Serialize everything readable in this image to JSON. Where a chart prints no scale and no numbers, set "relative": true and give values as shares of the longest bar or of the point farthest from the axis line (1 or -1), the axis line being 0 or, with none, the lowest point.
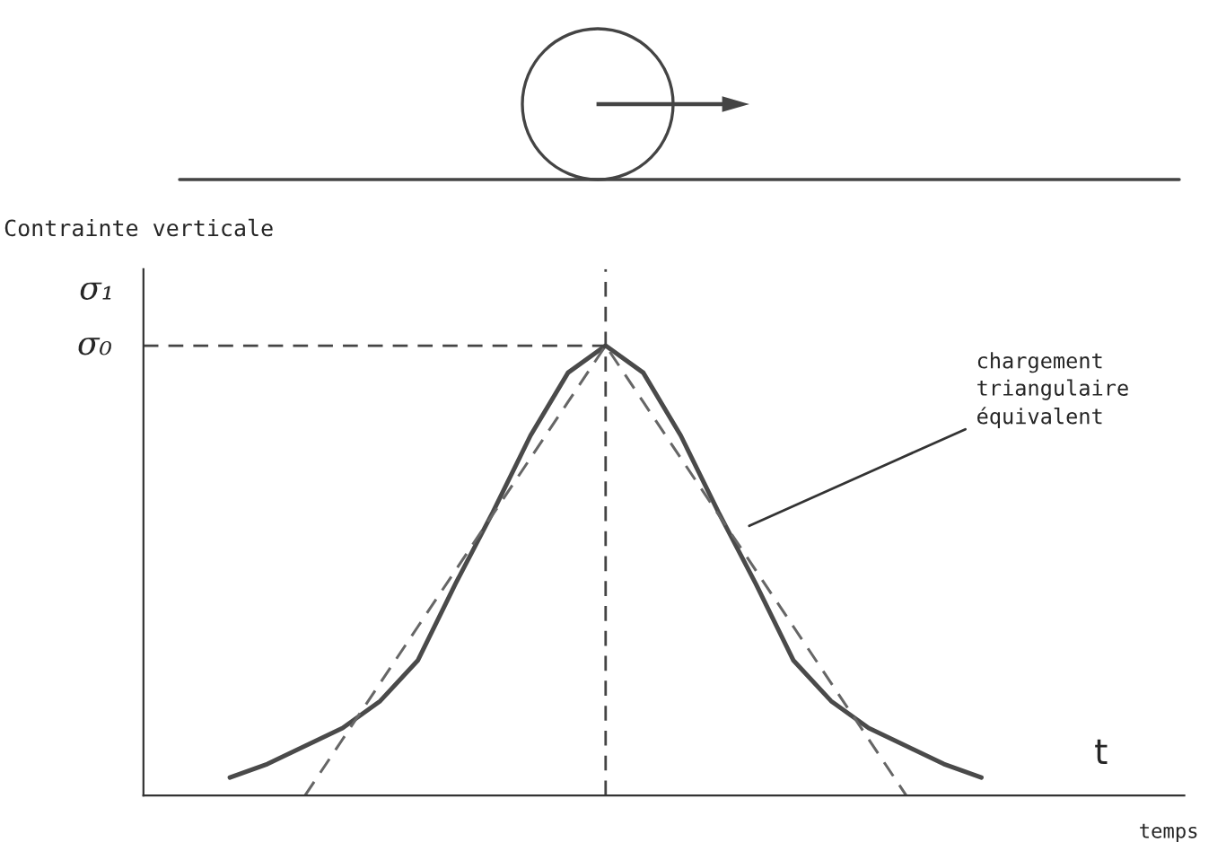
{
  "chart_data": {
    "type": "line",
    "relative": true,
    "title": "Contrainte verticale",
    "ylabel": "σ₁",
    "categories": [
      null,
      null,
      null,
      null,
      null,
      null,
      null,
      null,
      null,
      null,
      null,
      null,
      null,
      null,
      null,
      null,
      null,
      null,
      null,
      null,
      null
    ],
    "series": [
      {
        "color": "#4a4a4a",
        "line_style": "solid",
        "values": [
          0.04,
          0.07,
          0.11,
          0.15,
          0.21,
          0.3,
          0.47,
          0.63,
          0.8,
          0.94,
          1,
          0.94,
          0.8,
          0.63,
          0.47,
          0.3,
          0.21,
          0.15,
          0.11,
          0.07,
          0.04
        ]
      },
      {
        "color": "#666666",
        "line_style": "dashed",
        "values": [
          null,
          null,
          0,
          0.125,
          0.25,
          0.375,
          0.5,
          0.625,
          0.75,
          0.875,
          1,
          0.875,
          0.75,
          0.625,
          0.5,
          0.375,
          0.25,
          0.125,
          0,
          null,
          null
        ]
      }
    ],
    "ref_lines": [
      {
        "axis": "y",
        "value": 1,
        "label": "σ₀",
        "line_style": "dashed",
        "color": "#444444"
      }
    ],
    "annotations": [
      "t",
      "chargement\ntriangulaire\néquivalent",
      "temps"
    ]
  }
}
